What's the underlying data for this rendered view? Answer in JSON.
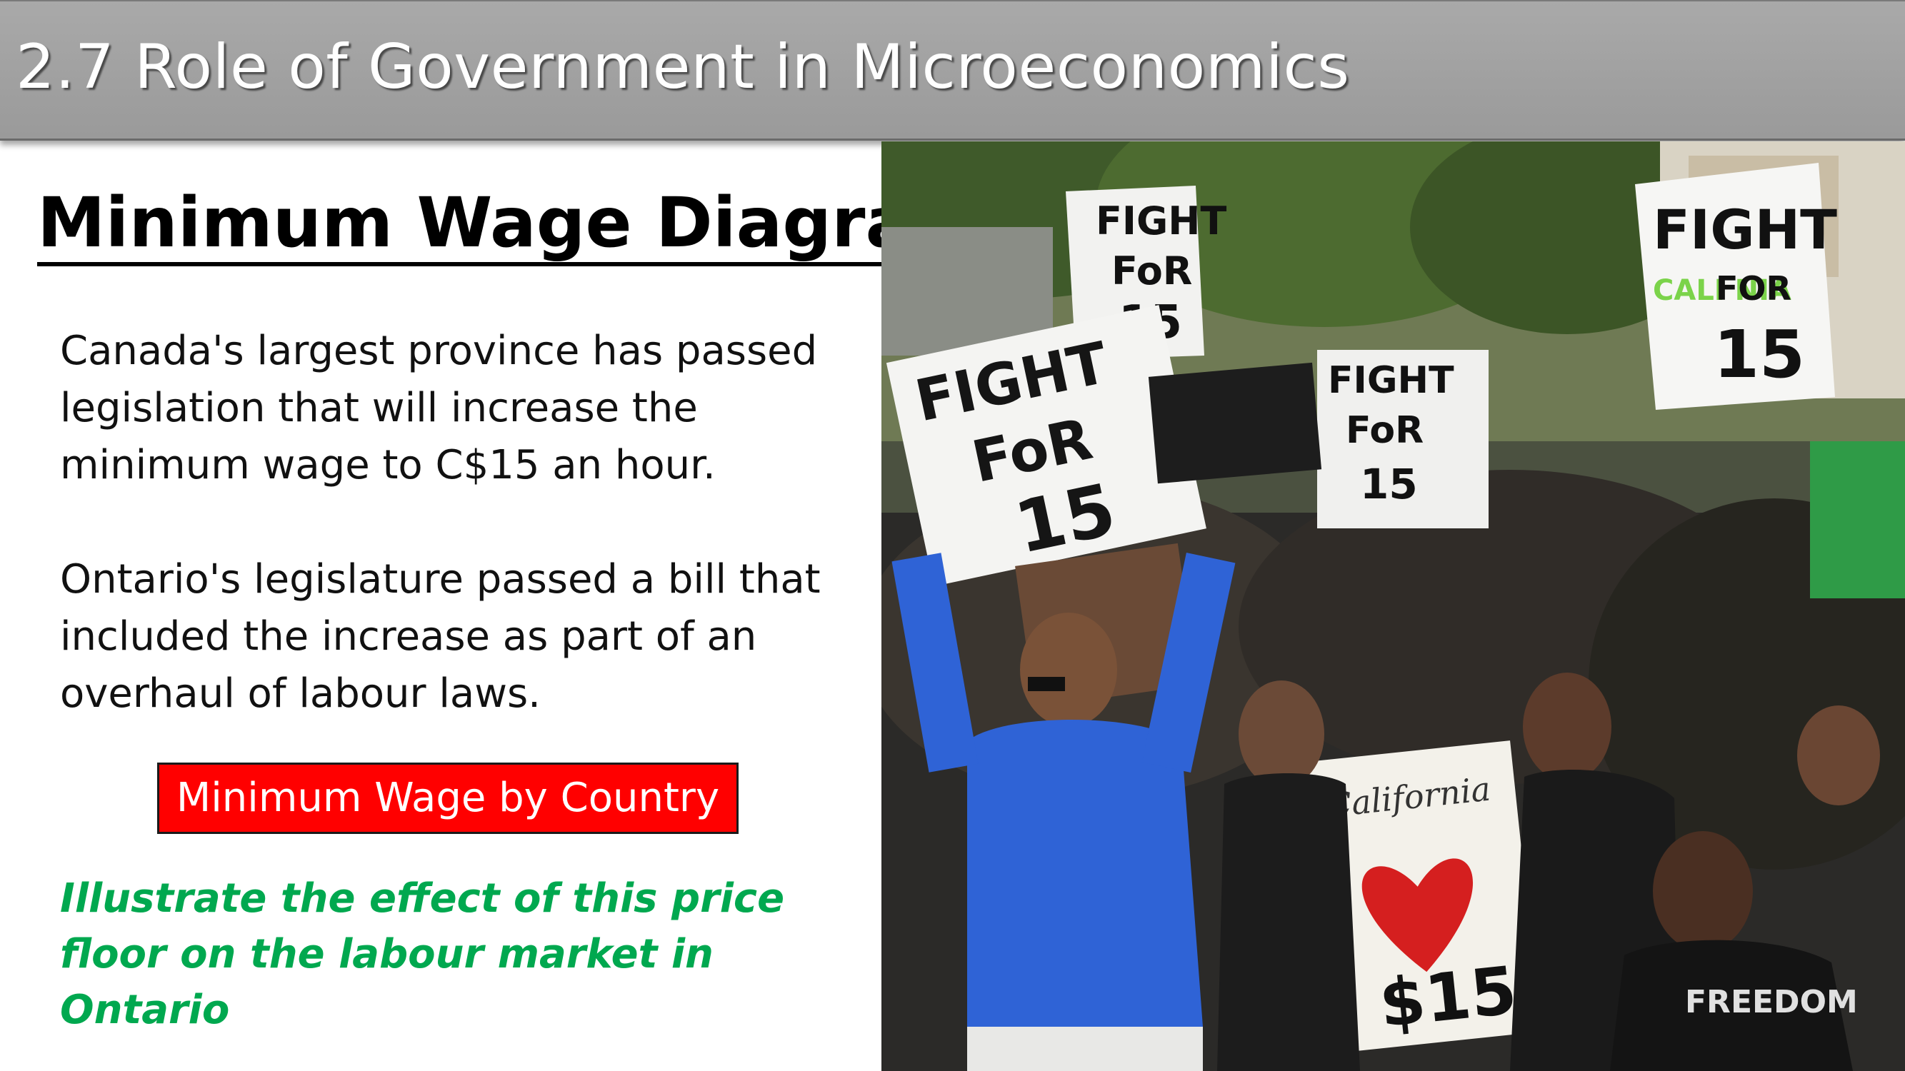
{
  "header": {
    "title": "2.7 Role of Government in Microeconomics"
  },
  "slide": {
    "heading": "Minimum Wage Diagram",
    "paragraph_1": "Canada's largest province has passed legislation that will increase the minimum wage to C$15 an hour.",
    "paragraph_2": "Ontario's legislature passed a bill that included the increase as part of an overhaul of labour laws.",
    "link_button_label": "Minimum Wage by Country",
    "task": "Illustrate the effect of this price floor on the labour market in Ontario"
  },
  "photo": {
    "signs": [
      {
        "line1": "FIGHT",
        "line2": "FoR",
        "line3": "15"
      },
      {
        "line1": "FIGHT",
        "line2": "FoR",
        "line3": "15"
      },
      {
        "line1": "FIGHT",
        "line2": "FoR",
        "line3": "15"
      },
      {
        "line1": "FIGHT",
        "line2": "FOR",
        "line3": "15",
        "accent": "CALI   NIA"
      }
    ],
    "heart_sign": {
      "script": "California",
      "amount": "$15"
    },
    "shirt_text": "FREEDOM"
  },
  "colors": {
    "title_bar": "#a0a0a0",
    "button_red": "#ff0000",
    "task_green": "#00a84f"
  }
}
